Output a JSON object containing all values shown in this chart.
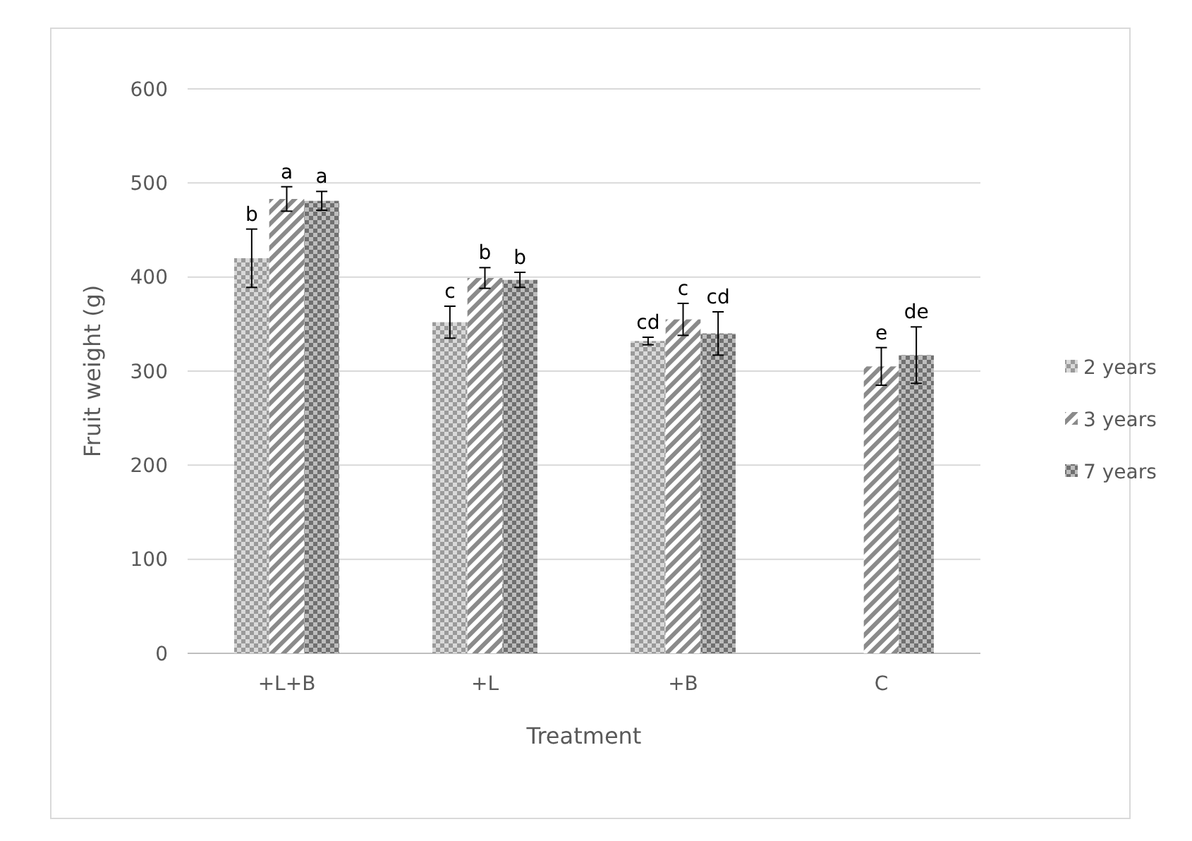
{
  "chart_data": {
    "type": "bar",
    "xlabel": "Treatment",
    "ylabel": "Fruit weight (g)",
    "categories": [
      "+L+B",
      "+L",
      "+B",
      "C"
    ],
    "series": [
      {
        "name": "2 years",
        "color": "#9a9a9a",
        "values": [
          420,
          352,
          332,
          null
        ],
        "errors": [
          31,
          17,
          4,
          null
        ],
        "value_labels": [
          "b",
          "c",
          "cd",
          null
        ]
      },
      {
        "name": "3 years",
        "color": "#8a8a8a",
        "values": [
          483,
          399,
          355,
          305
        ],
        "errors": [
          13,
          11,
          17,
          20
        ],
        "value_labels": [
          "a",
          "b",
          "c",
          "e"
        ]
      },
      {
        "name": "7 years",
        "color": "#707070",
        "values": [
          481,
          397,
          340,
          317
        ],
        "errors": [
          10,
          8,
          23,
          30
        ],
        "value_labels": [
          "a",
          "b",
          "cd",
          "de"
        ]
      }
    ],
    "ylim": [
      0,
      600
    ],
    "yticks": [
      0,
      100,
      200,
      300,
      400,
      500,
      600
    ],
    "grid": "y",
    "legend": "right"
  }
}
